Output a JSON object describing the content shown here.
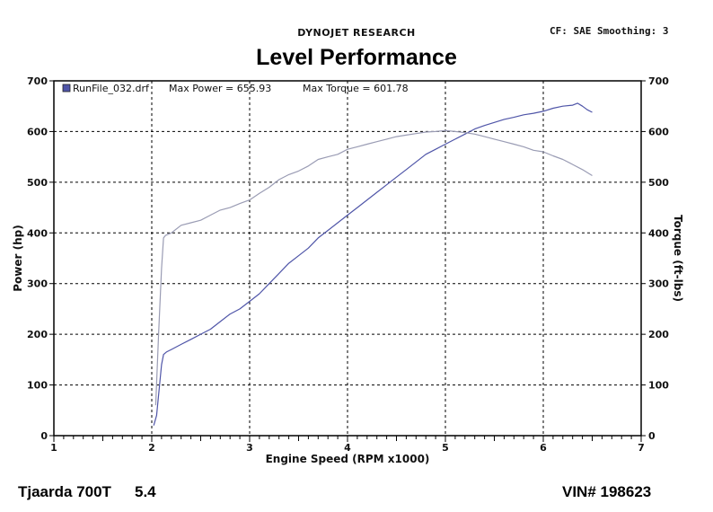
{
  "header": {
    "company": "DYNOJET RESEARCH",
    "cf_info": "CF: SAE  Smoothing: 3",
    "title": "Level Performance"
  },
  "footer": {
    "model": "Tjaarda 700T",
    "displacement": "5.4",
    "vin": "VIN# 198623"
  },
  "chart_data": {
    "type": "line",
    "title": "Level Performance",
    "xlabel": "Engine Speed (RPM x1000)",
    "ylabel": "Power (hp)",
    "ylabel_right": "Torque (ft-lbs)",
    "xlim": [
      1,
      7
    ],
    "ylim": [
      0,
      700
    ],
    "ylim_right": [
      0,
      700
    ],
    "x_ticks": [
      "1",
      "2",
      "3",
      "4",
      "5",
      "6",
      "7"
    ],
    "y_ticks": [
      "0",
      "100",
      "200",
      "300",
      "400",
      "500",
      "600",
      "700"
    ],
    "grid": true,
    "legend_position": "top-left",
    "legend": {
      "run_label": "RunFile_032.drf",
      "power_text": "Max Power = 655.93",
      "torque_text": "Max Torque = 601.78"
    },
    "series": [
      {
        "name": "Power",
        "color": "#4f55a8",
        "x": [
          2.02,
          2.05,
          2.08,
          2.1,
          2.12,
          2.15,
          2.2,
          2.3,
          2.4,
          2.5,
          2.6,
          2.7,
          2.8,
          2.9,
          3.0,
          3.1,
          3.2,
          3.3,
          3.4,
          3.5,
          3.6,
          3.7,
          3.8,
          3.9,
          4.0,
          4.1,
          4.2,
          4.3,
          4.4,
          4.5,
          4.6,
          4.7,
          4.8,
          4.9,
          5.0,
          5.1,
          5.2,
          5.3,
          5.4,
          5.5,
          5.6,
          5.7,
          5.8,
          5.9,
          6.0,
          6.1,
          6.2,
          6.3,
          6.35,
          6.4,
          6.45,
          6.5
        ],
        "values": [
          20,
          40,
          100,
          140,
          160,
          165,
          170,
          180,
          190,
          200,
          210,
          225,
          240,
          250,
          265,
          280,
          300,
          320,
          340,
          355,
          370,
          390,
          405,
          420,
          435,
          450,
          465,
          480,
          495,
          510,
          525,
          540,
          555,
          565,
          575,
          585,
          595,
          605,
          612,
          618,
          624,
          628,
          633,
          636,
          640,
          646,
          650,
          652,
          655.93,
          650,
          643,
          638
        ]
      },
      {
        "name": "Torque",
        "color": "#9a9cb4",
        "x": [
          2.04,
          2.07,
          2.1,
          2.12,
          2.14,
          2.2,
          2.3,
          2.4,
          2.5,
          2.6,
          2.7,
          2.8,
          2.9,
          3.0,
          3.1,
          3.2,
          3.3,
          3.4,
          3.5,
          3.6,
          3.7,
          3.8,
          3.9,
          4.0,
          4.1,
          4.2,
          4.3,
          4.4,
          4.5,
          4.6,
          4.7,
          4.8,
          4.9,
          5.0,
          5.1,
          5.2,
          5.3,
          5.4,
          5.5,
          5.6,
          5.7,
          5.8,
          5.9,
          6.0,
          6.1,
          6.2,
          6.3,
          6.4,
          6.5
        ],
        "values": [
          60,
          200,
          330,
          390,
          395,
          400,
          415,
          420,
          425,
          435,
          445,
          450,
          458,
          465,
          478,
          490,
          505,
          515,
          522,
          532,
          545,
          550,
          555,
          565,
          570,
          575,
          580,
          585,
          590,
          593,
          596,
          599,
          600,
          601.78,
          600,
          598,
          595,
          590,
          585,
          580,
          575,
          570,
          563,
          560,
          552,
          545,
          535,
          525,
          513
        ]
      }
    ]
  }
}
